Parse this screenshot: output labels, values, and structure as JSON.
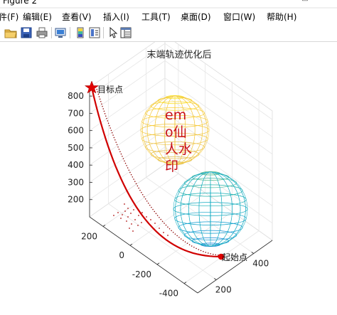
{
  "window": {
    "title": "Figure 2"
  },
  "menu": [
    "件(F)",
    "编辑(E)",
    "查看(V)",
    "插入(I)",
    "工具(T)",
    "桌面(D)",
    "窗口(W)",
    "帮助(H)"
  ],
  "toolbar": {
    "icons": [
      "open-folder-icon",
      "save-icon",
      "print-icon",
      "link-plot-icon",
      "insert-colorbar-icon",
      "insert-legend-icon",
      "pointer-icon",
      "property-inspector-icon"
    ]
  },
  "watermark": {
    "lines": [
      "em",
      "o仙",
      "人水",
      "印"
    ],
    "color": "#c8101a"
  },
  "chart_data": {
    "type": "line",
    "title": "末端轨迹优化后",
    "zticks": [
      200,
      300,
      400,
      500,
      600,
      700,
      800
    ],
    "yticks": [
      200,
      0,
      -200,
      -400
    ],
    "xticks": [
      200,
      400
    ],
    "zlim": [
      100,
      850
    ],
    "ylim": [
      -500,
      300
    ],
    "xlim": [
      100,
      500
    ],
    "grid": true,
    "annotations": {
      "start": "起始点",
      "goal": "目标点"
    },
    "series": [
      {
        "style": "solid",
        "color": "#d00000"
      },
      {
        "style": "dotted",
        "color": "#8b0000"
      }
    ],
    "markers": {
      "goal_color": "#e00000",
      "start_color": "#e00000"
    },
    "obstacles": [
      {
        "shape": "sphere",
        "colormap": "parula-upper"
      },
      {
        "shape": "sphere",
        "colormap": "parula-lower"
      }
    ]
  }
}
